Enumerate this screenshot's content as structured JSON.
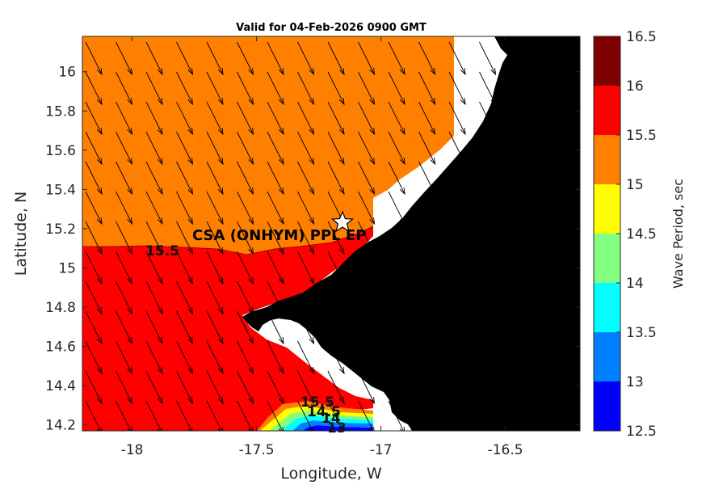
{
  "chart_data": {
    "type": "heatmap",
    "title": "Valid for 04-Feb-2026 0900 GMT",
    "xlabel": "Longitude, W",
    "ylabel": "Latitude, N",
    "x_ticks": [
      "-18",
      "-17.5",
      "-17",
      "-16.5"
    ],
    "y_ticks": [
      "16",
      "15.8",
      "15.6",
      "15.4",
      "15.2",
      "15",
      "14.8",
      "14.6",
      "14.4",
      "14.2"
    ],
    "xlim": [
      -18.2,
      -16.2
    ],
    "ylim": [
      14.17,
      16.18
    ],
    "colorbar": {
      "label": "Wave Period, sec",
      "ticks": [
        "16.5",
        "16",
        "15.5",
        "15",
        "14.5",
        "14",
        "13.5",
        "13",
        "12.5"
      ],
      "levels": [
        12.5,
        13,
        13.5,
        14,
        14.5,
        15,
        15.5,
        16,
        16.5
      ],
      "colors": [
        "#0000ff",
        "#0080ff",
        "#00ffff",
        "#80ff80",
        "#ffff00",
        "#ff8000",
        "#ff0000",
        "#800000"
      ]
    },
    "contour_labels": [
      "15.5",
      "15.5",
      "14.5",
      "14",
      "13"
    ],
    "site": {
      "name": "CSA (ONHYM) PPL EP",
      "lon": -17.1,
      "lat": 15.22
    },
    "arrow_direction": "toward south-southeast",
    "land_color": "#000000"
  }
}
